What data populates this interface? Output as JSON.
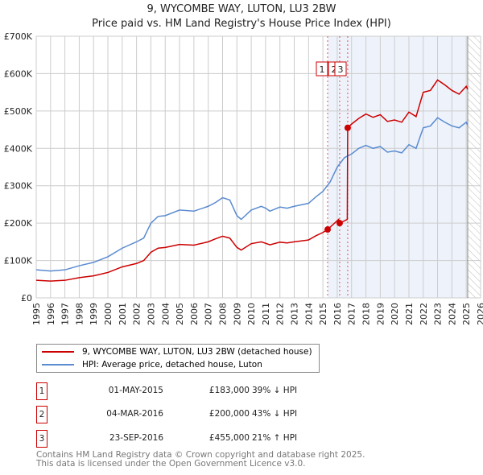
{
  "chart_data": {
    "type": "line",
    "title": "9, WYCOMBE WAY, LUTON, LU3 2BW",
    "subtitle": "Price paid vs. HM Land Registry's House Price Index (HPI)",
    "xlim": [
      1995,
      2026
    ],
    "ylim": [
      0,
      700000
    ],
    "x_ticks": [
      "1995",
      "1996",
      "1997",
      "1998",
      "1999",
      "2000",
      "2001",
      "2002",
      "2003",
      "2004",
      "2005",
      "2006",
      "2007",
      "2008",
      "2009",
      "2010",
      "2011",
      "2012",
      "2013",
      "2014",
      "2015",
      "2016",
      "2017",
      "2018",
      "2019",
      "2020",
      "2021",
      "2022",
      "2023",
      "2024",
      "2025",
      "2026"
    ],
    "y_ticks": [
      {
        "v": 0,
        "label": "£0"
      },
      {
        "v": 100000,
        "label": "£100K"
      },
      {
        "v": 200000,
        "label": "£200K"
      },
      {
        "v": 300000,
        "label": "£300K"
      },
      {
        "v": 400000,
        "label": "£400K"
      },
      {
        "v": 500000,
        "label": "£500K"
      },
      {
        "v": 600000,
        "label": "£600K"
      },
      {
        "v": 700000,
        "label": "£700K"
      }
    ],
    "grid": true,
    "shaded_range": [
      2015.33,
      2025.1
    ],
    "hatched_from": 2025.1,
    "colors": {
      "property": "#cc0000",
      "hpi": "#5b8bd0",
      "shade": "#eef3fb"
    },
    "series": [
      {
        "name": "9, WYCOMBE WAY, LUTON, LU3 2BW (detached house)",
        "key": "property",
        "x": [
          1995,
          1996,
          1997,
          1998,
          1999,
          2000,
          2001,
          2002,
          2002.5,
          2003,
          2003.5,
          2004,
          2005,
          2006,
          2007,
          2007.5,
          2008,
          2008.5,
          2009,
          2009.3,
          2010,
          2010.7,
          2011,
          2011.3,
          2012,
          2012.5,
          2013,
          2014,
          2014.5,
          2015,
          2015.33,
          2016.1,
          2016.17,
          2016.7,
          2016.73,
          2017,
          2017.5,
          2018,
          2018.5,
          2019,
          2019.5,
          2020,
          2020.5,
          2021,
          2021.5,
          2022,
          2022.5,
          2023,
          2023.5,
          2024,
          2024.5,
          2025,
          2025.1
        ],
        "y": [
          47000,
          45000,
          47000,
          54000,
          59000,
          68000,
          83000,
          92000,
          100000,
          122000,
          133000,
          135000,
          143000,
          141000,
          150000,
          158000,
          165000,
          160000,
          135000,
          128000,
          145000,
          150000,
          146000,
          142000,
          149000,
          147000,
          150000,
          155000,
          166000,
          175000,
          183000,
          210000,
          200000,
          210000,
          455000,
          465000,
          480000,
          492000,
          483000,
          490000,
          472000,
          476000,
          470000,
          497000,
          485000,
          550000,
          555000,
          583000,
          570000,
          555000,
          545000,
          566000,
          558000
        ]
      },
      {
        "name": "HPI: Average price, detached house, Luton",
        "key": "hpi",
        "x": [
          1995,
          1996,
          1997,
          1998,
          1999,
          2000,
          2001,
          2002,
          2002.5,
          2003,
          2003.5,
          2004,
          2005,
          2006,
          2007,
          2007.5,
          2008,
          2008.5,
          2009,
          2009.3,
          2010,
          2010.7,
          2011,
          2011.3,
          2012,
          2012.5,
          2013,
          2014,
          2014.5,
          2015,
          2015.5,
          2016,
          2016.5,
          2017,
          2017.5,
          2018,
          2018.5,
          2019,
          2019.5,
          2020,
          2020.5,
          2021,
          2021.5,
          2022,
          2022.5,
          2023,
          2023.5,
          2024,
          2024.5,
          2025,
          2025.1
        ],
        "y": [
          75000,
          72000,
          75000,
          86000,
          95000,
          110000,
          133000,
          150000,
          160000,
          200000,
          218000,
          220000,
          235000,
          232000,
          245000,
          255000,
          268000,
          262000,
          220000,
          210000,
          235000,
          245000,
          240000,
          232000,
          243000,
          240000,
          245000,
          253000,
          270000,
          285000,
          310000,
          350000,
          375000,
          385000,
          400000,
          408000,
          400000,
          405000,
          390000,
          393000,
          388000,
          410000,
          400000,
          455000,
          460000,
          482000,
          470000,
          460000,
          455000,
          470000,
          462000
        ]
      }
    ],
    "sales": [
      {
        "id": "1",
        "x": 2015.33,
        "price": 183000,
        "date": "01-MAY-2015",
        "price_label": "£183,000",
        "hpi_label": "39% ↓ HPI"
      },
      {
        "id": "2",
        "x": 2016.17,
        "price": 200000,
        "date": "04-MAR-2016",
        "price_label": "£200,000",
        "hpi_label": "43% ↓ HPI"
      },
      {
        "id": "3",
        "x": 2016.73,
        "price": 455000,
        "date": "23-SEP-2016",
        "price_label": "£455,000",
        "hpi_label": "21% ↑ HPI"
      }
    ]
  },
  "footer": {
    "line1": "Contains HM Land Registry data © Crown copyright and database right 2025.",
    "line2": "This data is licensed under the Open Government Licence v3.0."
  }
}
